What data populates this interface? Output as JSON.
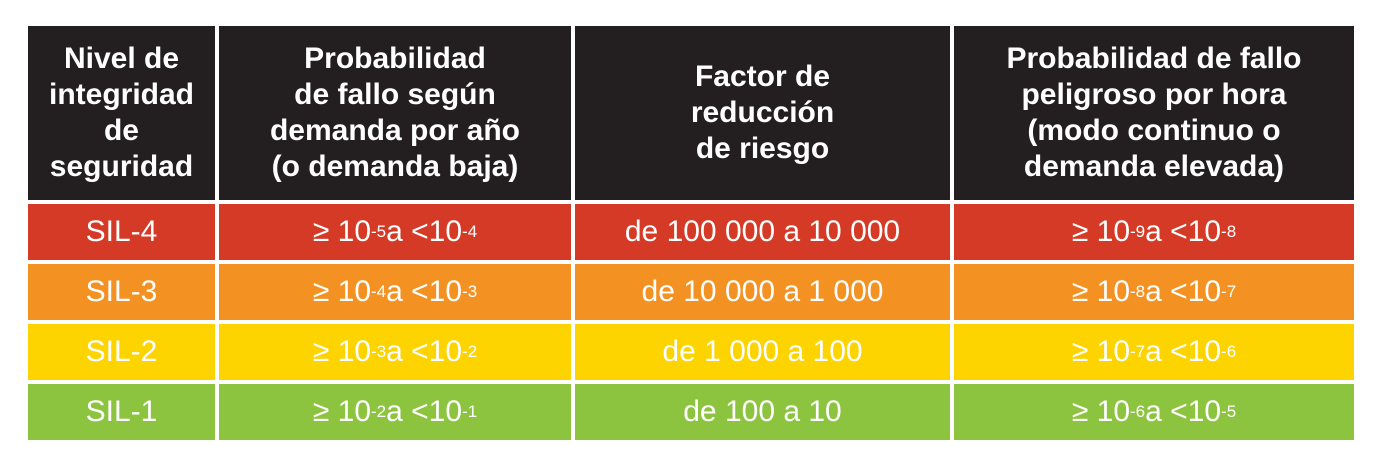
{
  "colors": {
    "header_bg": "#231f20",
    "sil4": "#d53a26",
    "sil3": "#f39222",
    "sil2": "#fdd300",
    "sil1": "#8cc43f",
    "text": "#ffffff"
  },
  "header": {
    "col1": [
      "Nivel de",
      "integridad",
      "de",
      "seguridad"
    ],
    "col2": [
      "Probabilidad",
      "de fallo según",
      "demanda por año",
      "(o demanda baja)"
    ],
    "col3": [
      "Factor de",
      "reducción",
      "de riesgo"
    ],
    "col4": [
      "Probabilidad de fallo",
      "peligroso por hora",
      "(modo continuo o",
      "demanda elevada)"
    ]
  },
  "rows": [
    {
      "level": "SIL-4",
      "low_demand": {
        "ge": "≥ 10",
        "ge_exp": "-5",
        "lt": " a <10",
        "lt_exp": "-4"
      },
      "rrf": "de 100 000 a 10 000",
      "high_demand": {
        "ge": "≥ 10",
        "ge_exp": "-9",
        "lt": " a <10",
        "lt_exp": "-8"
      }
    },
    {
      "level": "SIL-3",
      "low_demand": {
        "ge": "≥ 10",
        "ge_exp": "-4",
        "lt": " a <10",
        "lt_exp": "-3"
      },
      "rrf": "de 10 000 a 1 000",
      "high_demand": {
        "ge": "≥ 10",
        "ge_exp": "-8",
        "lt": " a <10",
        "lt_exp": "-7"
      }
    },
    {
      "level": "SIL-2",
      "low_demand": {
        "ge": "≥ 10",
        "ge_exp": "-3",
        "lt": " a <10",
        "lt_exp": "-2"
      },
      "rrf": "de 1 000 a 100",
      "high_demand": {
        "ge": "≥ 10",
        "ge_exp": "-7",
        "lt": " a <10",
        "lt_exp": "-6"
      }
    },
    {
      "level": "SIL-1",
      "low_demand": {
        "ge": "≥ 10",
        "ge_exp": "-2",
        "lt": " a <10",
        "lt_exp": "-1"
      },
      "rrf": "de 100 a 10",
      "high_demand": {
        "ge": "≥ 10",
        "ge_exp": "-6",
        "lt": " a <10",
        "lt_exp": "-5"
      }
    }
  ]
}
